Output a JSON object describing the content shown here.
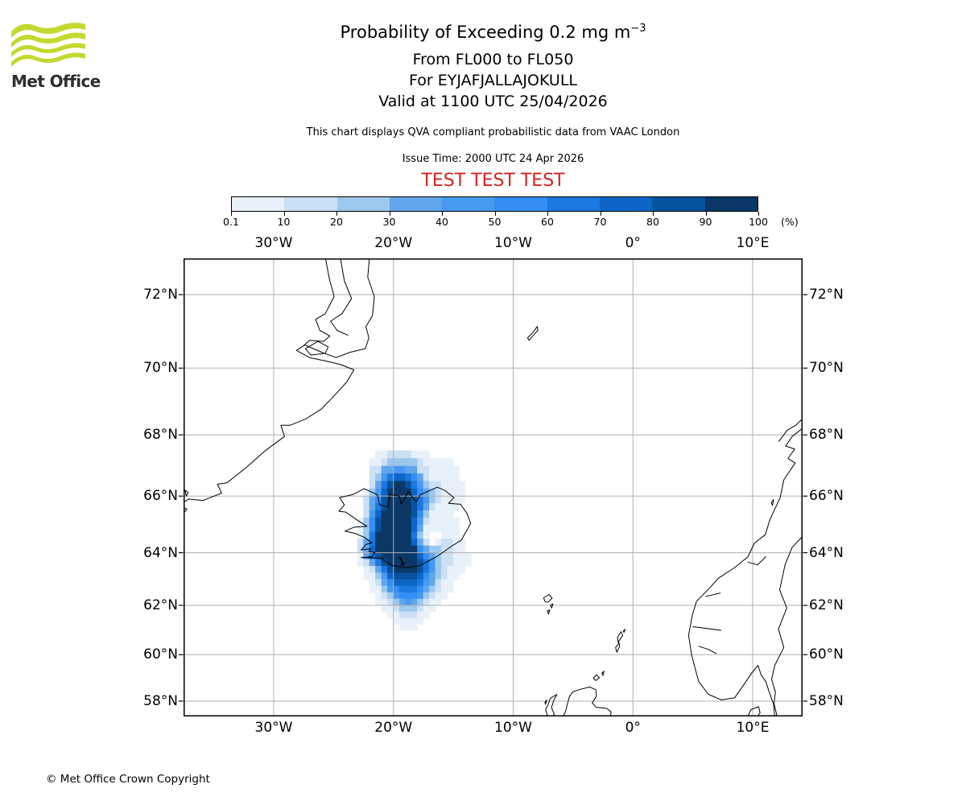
{
  "header": {
    "logo_text": "Met Office",
    "logo_color": "#c3d830",
    "title_main": "Probability of Exceeding 0.2 mg m",
    "title_sup": "−3",
    "subtitle_lines": [
      "From FL000 to FL050",
      "For EYJAFJALLAJOKULL",
      "Valid at 1100 UTC 25/04/2026"
    ],
    "info_line": "This chart displays QVA compliant probabilistic data from VAAC London",
    "issue_line": "Issue Time: 2000 UTC 24 Apr 2026",
    "test_banner": "TEST TEST TEST",
    "test_color": "#d62222"
  },
  "colorbar": {
    "tick_labels": [
      "0.1",
      "10",
      "20",
      "30",
      "40",
      "50",
      "60",
      "70",
      "80",
      "90",
      "100"
    ],
    "unit_label": "(%)"
  },
  "map": {
    "gridline_color": "#b0b0b0",
    "lon_ticks": [
      {
        "value": -30,
        "label": "30°W"
      },
      {
        "value": -20,
        "label": "20°W"
      },
      {
        "value": -10,
        "label": "10°W"
      },
      {
        "value": 0,
        "label": "0°"
      },
      {
        "value": 10,
        "label": "10°E"
      }
    ],
    "lat_ticks": [
      {
        "value": 72,
        "label": "72°N"
      },
      {
        "value": 70,
        "label": "70°N"
      },
      {
        "value": 68,
        "label": "68°N"
      },
      {
        "value": 66,
        "label": "66°N"
      },
      {
        "value": 64,
        "label": "64°N"
      },
      {
        "value": 62,
        "label": "62°N"
      },
      {
        "value": 60,
        "label": "60°N"
      },
      {
        "value": 58,
        "label": "58°N"
      }
    ],
    "coastlines": [
      {
        "name": "greenland-east-coast",
        "closed": false,
        "pts": [
          -22.0,
          72.95,
          -22.15,
          72.45,
          -21.6,
          71.95,
          -21.75,
          71.45,
          -22.3,
          71.15,
          -22.05,
          70.85,
          -22.35,
          70.55,
          -23.6,
          70.45,
          -24.8,
          70.3,
          -26.0,
          70.45,
          -27.4,
          70.65,
          -28.1,
          70.5,
          -27.0,
          70.3,
          -25.6,
          70.2,
          -24.4,
          70.1,
          -23.3,
          69.95,
          -23.9,
          69.6,
          -24.8,
          69.25,
          -26.0,
          68.8,
          -27.3,
          68.5,
          -28.6,
          68.3,
          -29.4,
          68.3,
          -29.1,
          67.95,
          -30.7,
          67.5,
          -32.3,
          66.95,
          -33.9,
          66.45,
          -34.7,
          66.4,
          -34.35,
          66.1,
          -35.9,
          65.85,
          -37.1,
          65.9,
          -37.7,
          65.75
        ]
      },
      {
        "name": "greenland-fjord-1",
        "closed": false,
        "pts": [
          -25.7,
          72.95,
          -25.35,
          72.4,
          -24.95,
          71.95,
          -25.7,
          71.5,
          -26.5,
          71.35,
          -26.15,
          71.05,
          -25.3,
          70.9,
          -25.85,
          70.75,
          -27.0,
          70.78,
          -27.45,
          70.65
        ]
      },
      {
        "name": "greenland-fjord-2",
        "closed": false,
        "pts": [
          -24.45,
          72.95,
          -24.1,
          72.35,
          -23.5,
          71.9,
          -24.3,
          71.5,
          -25.25,
          71.3,
          -24.7,
          71.05,
          -23.8,
          70.92
        ]
      },
      {
        "name": "milne-land-island",
        "closed": true,
        "pts": [
          -26.3,
          70.75,
          -25.45,
          70.6,
          -25.7,
          70.42,
          -26.9,
          70.37,
          -27.35,
          70.55
        ]
      },
      {
        "name": "greenland-islet-1",
        "closed": true,
        "pts": [
          -37.4,
          66.2,
          -37.15,
          66.12,
          -37.3,
          66.0
        ]
      },
      {
        "name": "greenland-islet-2",
        "closed": true,
        "pts": [
          -37.5,
          65.6,
          -37.25,
          65.55,
          -37.45,
          65.45
        ]
      },
      {
        "name": "iceland",
        "closed": true,
        "pts": [
          -22.7,
          63.82,
          -21.8,
          63.85,
          -21.55,
          64.0,
          -22.05,
          64.05,
          -21.9,
          64.15,
          -22.7,
          64.1,
          -22.3,
          64.3,
          -21.8,
          64.35,
          -22.4,
          64.55,
          -23.2,
          64.7,
          -24.05,
          64.78,
          -23.3,
          64.92,
          -22.2,
          64.95,
          -22.85,
          65.12,
          -24.0,
          65.45,
          -24.55,
          65.48,
          -24.1,
          65.7,
          -24.5,
          65.95,
          -23.4,
          66.05,
          -22.45,
          66.25,
          -21.35,
          66.05,
          -21.15,
          65.7,
          -20.45,
          65.62,
          -20.3,
          66.05,
          -19.5,
          66.0,
          -19.35,
          65.72,
          -18.75,
          66.15,
          -18.1,
          65.8,
          -17.75,
          66.05,
          -16.9,
          66.2,
          -16.35,
          66.3,
          -15.75,
          66.2,
          -14.95,
          65.95,
          -15.4,
          65.75,
          -14.4,
          65.72,
          -13.85,
          65.4,
          -13.55,
          65.05,
          -14.35,
          64.45,
          -15.1,
          64.25,
          -16.4,
          63.85,
          -17.8,
          63.52,
          -18.9,
          63.45,
          -20.1,
          63.52,
          -21.1,
          63.8
        ]
      },
      {
        "name": "jan-mayen",
        "closed": true,
        "pts": [
          -8.8,
          70.85,
          -8.35,
          71.0,
          -8.0,
          71.16,
          -7.95,
          71.05,
          -8.45,
          70.87,
          -8.68,
          70.78
        ]
      },
      {
        "name": "faroe-main",
        "closed": true,
        "pts": [
          -7.45,
          62.3,
          -7.0,
          62.42,
          -6.75,
          62.28,
          -7.1,
          62.12,
          -7.35,
          62.15
        ]
      },
      {
        "name": "faroe-islet-1",
        "closed": true,
        "pts": [
          -6.9,
          62.0,
          -6.68,
          62.06,
          -6.78,
          61.9
        ]
      },
      {
        "name": "faroe-islet-2",
        "closed": true,
        "pts": [
          -7.15,
          61.78,
          -6.95,
          61.82,
          -7.05,
          61.66
        ]
      },
      {
        "name": "shetland",
        "closed": true,
        "pts": [
          -1.35,
          60.1,
          -1.1,
          60.35,
          -1.2,
          60.55,
          -0.85,
          60.8,
          -1.0,
          60.95,
          -1.3,
          60.7,
          -1.2,
          60.45,
          -1.45,
          60.3
        ]
      },
      {
        "name": "shetland-islet",
        "closed": true,
        "pts": [
          -0.8,
          60.98,
          -0.65,
          61.05,
          -0.75,
          60.92
        ]
      },
      {
        "name": "orkney-1",
        "closed": true,
        "pts": [
          -3.3,
          59.0,
          -3.05,
          59.15,
          -2.8,
          59.02,
          -3.1,
          58.9
        ]
      },
      {
        "name": "orkney-2",
        "closed": true,
        "pts": [
          -2.6,
          59.22,
          -2.42,
          59.3,
          -2.5,
          59.12
        ]
      },
      {
        "name": "scotland-north",
        "closed": false,
        "pts": [
          -5.9,
          57.25,
          -5.62,
          57.55,
          -5.48,
          57.85,
          -5.3,
          58.2,
          -5.0,
          58.42,
          -4.4,
          58.52,
          -3.6,
          58.62,
          -3.1,
          58.5,
          -3.05,
          58.22,
          -3.4,
          57.92,
          -3.05,
          57.72,
          -2.2,
          57.68,
          -1.82,
          57.52,
          -1.9,
          57.25
        ]
      },
      {
        "name": "outer-hebrides",
        "closed": true,
        "pts": [
          -7.1,
          57.28,
          -7.3,
          57.62,
          -7.1,
          57.82,
          -6.9,
          58.12,
          -6.35,
          58.3,
          -6.62,
          58.02,
          -6.8,
          57.72,
          -6.58,
          57.42,
          -6.7,
          57.28
        ]
      },
      {
        "name": "hebrides-islet",
        "closed": true,
        "pts": [
          -7.35,
          57.95,
          -7.2,
          58.05,
          -7.3,
          57.85
        ]
      },
      {
        "name": "norway-coast",
        "closed": false,
        "pts": [
          14.3,
          68.25,
          13.3,
          67.95,
          12.75,
          67.65,
          13.5,
          67.55,
          12.95,
          67.25,
          13.55,
          67.1,
          12.6,
          66.55,
          12.3,
          65.95,
          11.45,
          65.2,
          11.05,
          64.65,
          10.15,
          64.35,
          9.6,
          63.85,
          8.5,
          63.45,
          7.15,
          63.05,
          6.25,
          62.6,
          5.3,
          62.15,
          4.95,
          61.6,
          4.65,
          60.8,
          4.9,
          60.0,
          5.25,
          59.3,
          5.5,
          58.85,
          6.3,
          58.3,
          7.4,
          58.05,
          8.5,
          58.15,
          9.3,
          58.75,
          9.95,
          59.25,
          10.45,
          59.55,
          10.7,
          59.15,
          11.1,
          58.85,
          11.35,
          58.45,
          11.75,
          57.85,
          11.85,
          57.25
        ]
      },
      {
        "name": "lofoten-chain",
        "closed": false,
        "pts": [
          14.3,
          68.55,
          13.6,
          68.3,
          12.9,
          68.15,
          12.2,
          67.8
        ]
      },
      {
        "name": "sognefjord",
        "closed": false,
        "pts": [
          5.0,
          61.15,
          6.2,
          61.08,
          7.35,
          61.0
        ]
      },
      {
        "name": "hardangerfjord",
        "closed": false,
        "pts": [
          5.5,
          60.35,
          6.3,
          60.22,
          6.95,
          60.05
        ]
      },
      {
        "name": "trondheimsfjord",
        "closed": false,
        "pts": [
          9.6,
          63.65,
          10.4,
          63.55,
          11.1,
          63.85
        ]
      },
      {
        "name": "romsdalsfjord",
        "closed": false,
        "pts": [
          6.1,
          62.35,
          7.3,
          62.48
        ]
      },
      {
        "name": "norway-islet",
        "closed": true,
        "pts": [
          11.55,
          65.78,
          11.75,
          65.88,
          11.65,
          65.68
        ]
      },
      {
        "name": "norway-sweden-border",
        "closed": false,
        "pts": [
          14.3,
          64.65,
          13.3,
          64.2,
          12.7,
          63.55,
          12.25,
          62.6,
          12.85,
          61.9,
          12.15,
          61.05,
          12.6,
          60.3,
          11.85,
          59.55,
          11.58,
          58.95,
          11.9,
          58.4,
          11.78,
          57.9,
          12.0,
          57.4,
          11.95,
          57.25
        ]
      },
      {
        "name": "denmark-skagen",
        "closed": false,
        "pts": [
          9.55,
          57.25,
          9.85,
          57.62,
          10.5,
          57.75,
          10.62,
          57.48,
          10.3,
          57.25
        ]
      }
    ]
  },
  "footer": {
    "copyright": "© Met Office Crown Copyright"
  },
  "chart_data": {
    "type": "heatmap",
    "title": "Probability of Exceeding 0.2 mg m−3",
    "subtitle": [
      "From FL000 to FL050",
      "For EYJAFJALLAJOKULL",
      "Valid at 1100 UTC 25/04/2026"
    ],
    "projection": "mercator",
    "extent": {
      "lon_min": -37.53,
      "lon_max": 14.17,
      "lat_min": 57.3,
      "lat_max": 72.91
    },
    "x_tick_values": [
      -30,
      -20,
      -10,
      0,
      10
    ],
    "y_tick_values": [
      58,
      60,
      62,
      64,
      66,
      68,
      70,
      72
    ],
    "colorbar_levels_percent": [
      0.1,
      10,
      20,
      30,
      40,
      50,
      60,
      70,
      80,
      90,
      100
    ],
    "colorbar_unit": "%",
    "colors": [
      "#e8f1fa",
      "#cbdff5",
      "#9cc8ee",
      "#61a6eb",
      "#4899f0",
      "#338ff2",
      "#1b78e0",
      "#0d66c6",
      "#07529e",
      "#0b3866"
    ],
    "volcano_marker": {
      "name": "EYJAFJALLAJOKULL",
      "lon": -19.62,
      "lat": 63.82
    },
    "grid": {
      "encoding": "each char = one cell; '.' = no data, '1'-'9' = probability bins 1-9 of colorbar, 'a' = bin 10 (90-100%)",
      "lon_start": -24.5,
      "lon_step": 0.5,
      "lat_start": 67.5,
      "lat_step": -0.25,
      "cols": 26,
      "rows": [
        "......112222111...........",
        ".....11233333211111.......",
        ".....224455442211111......",
        ".....235788764211111......",
        ".....2479aa9753221111.....",
        "....1358aaaa864321111.....",
        "....2469aaaa975321111.....",
        "....2479aaaa97421111......",
        "....258aaaaa9631111.......",
        "...1369aaaaa85211111......",
        "...1369aaaaa84111111......",
        "...137aaaaaa731..111......",
        "...247aaaaaa842.12211.....",
        "...248aaaaaaa64332211.....",
        "...1479aaaaaa864322111....",
        "...12479aaaaa975322111....",
        "....12479aaaa97532111.....",
        "....1135899998643211......",
        ".....12468888754211.......",
        ".....11356777643211.......",
        "......123566653211........",
        "......11234543211.........",
        ".......112333211..........",
        "........1122211...........",
        ".........11111............",
        "..........111............."
      ]
    }
  }
}
